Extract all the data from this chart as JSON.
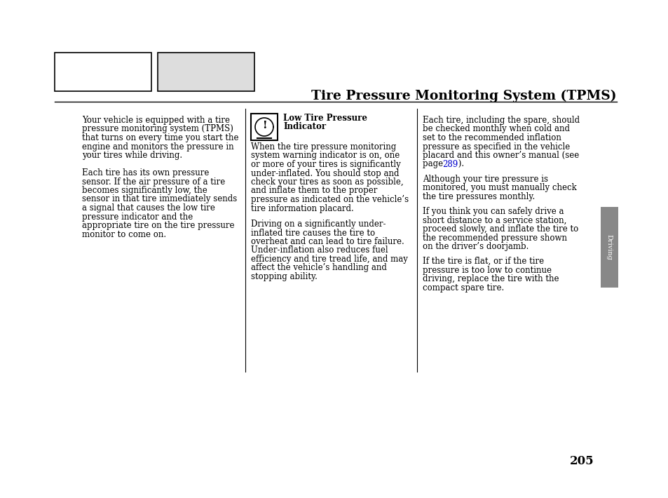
{
  "title": "Tire Pressure Monitoring System (TPMS)",
  "page_number": "205",
  "background_color": "#ffffff",
  "text_color": "#000000",
  "tab_color": "#888888",
  "link_color": "#0000cc",
  "col1_lines": [
    "Your vehicle is equipped with a tire",
    "pressure monitoring system (TPMS)",
    "that turns on every time you start the",
    "engine and monitors the pressure in",
    "your tires while driving.",
    "",
    "Each tire has its own pressure",
    "sensor. If the air pressure of a tire",
    "becomes significantly low, the",
    "sensor in that tire immediately sends",
    "a signal that causes the low tire",
    "pressure indicator and the",
    "appropriate tire on the tire pressure",
    "monitor to come on."
  ],
  "col2_heading1": "Low Tire Pressure",
  "col2_heading2": "Indicator",
  "col2_lines1": [
    "When the tire pressure monitoring",
    "system warning indicator is on, one",
    "or more of your tires is significantly",
    "under-inflated. You should stop and",
    "check your tires as soon as possible,",
    "and inflate them to the proper",
    "pressure as indicated on the vehicle’s",
    "tire information placard."
  ],
  "col2_lines2": [
    "Driving on a significantly under-",
    "inflated tire causes the tire to",
    "overheat and can lead to tire failure.",
    "Under-inflation also reduces fuel",
    "efficiency and tire tread life, and may",
    "affect the vehicle’s handling and",
    "stopping ability."
  ],
  "col3_lines1": [
    "Each tire, including the spare, should",
    "be checked monthly when cold and",
    "set to the recommended inflation",
    "pressure as specified in the vehicle",
    "placard and this owner’s manual (see",
    "page 289 )."
  ],
  "col3_lines2": [
    "Although your tire pressure is",
    "monitored, you must manually check",
    "the tire pressures monthly."
  ],
  "col3_lines3": [
    "If you think you can safely drive a",
    "short distance to a service station,",
    "proceed slowly, and inflate the tire to",
    "the recommended pressure shown",
    "on the driver’s doorjamb."
  ],
  "col3_lines4": [
    "If the tire is flat, or if the tire",
    "pressure is too low to continue",
    "driving, replace the tire with the",
    "compact spare tire."
  ],
  "sidebar_text": "Driving",
  "page_link": "289"
}
